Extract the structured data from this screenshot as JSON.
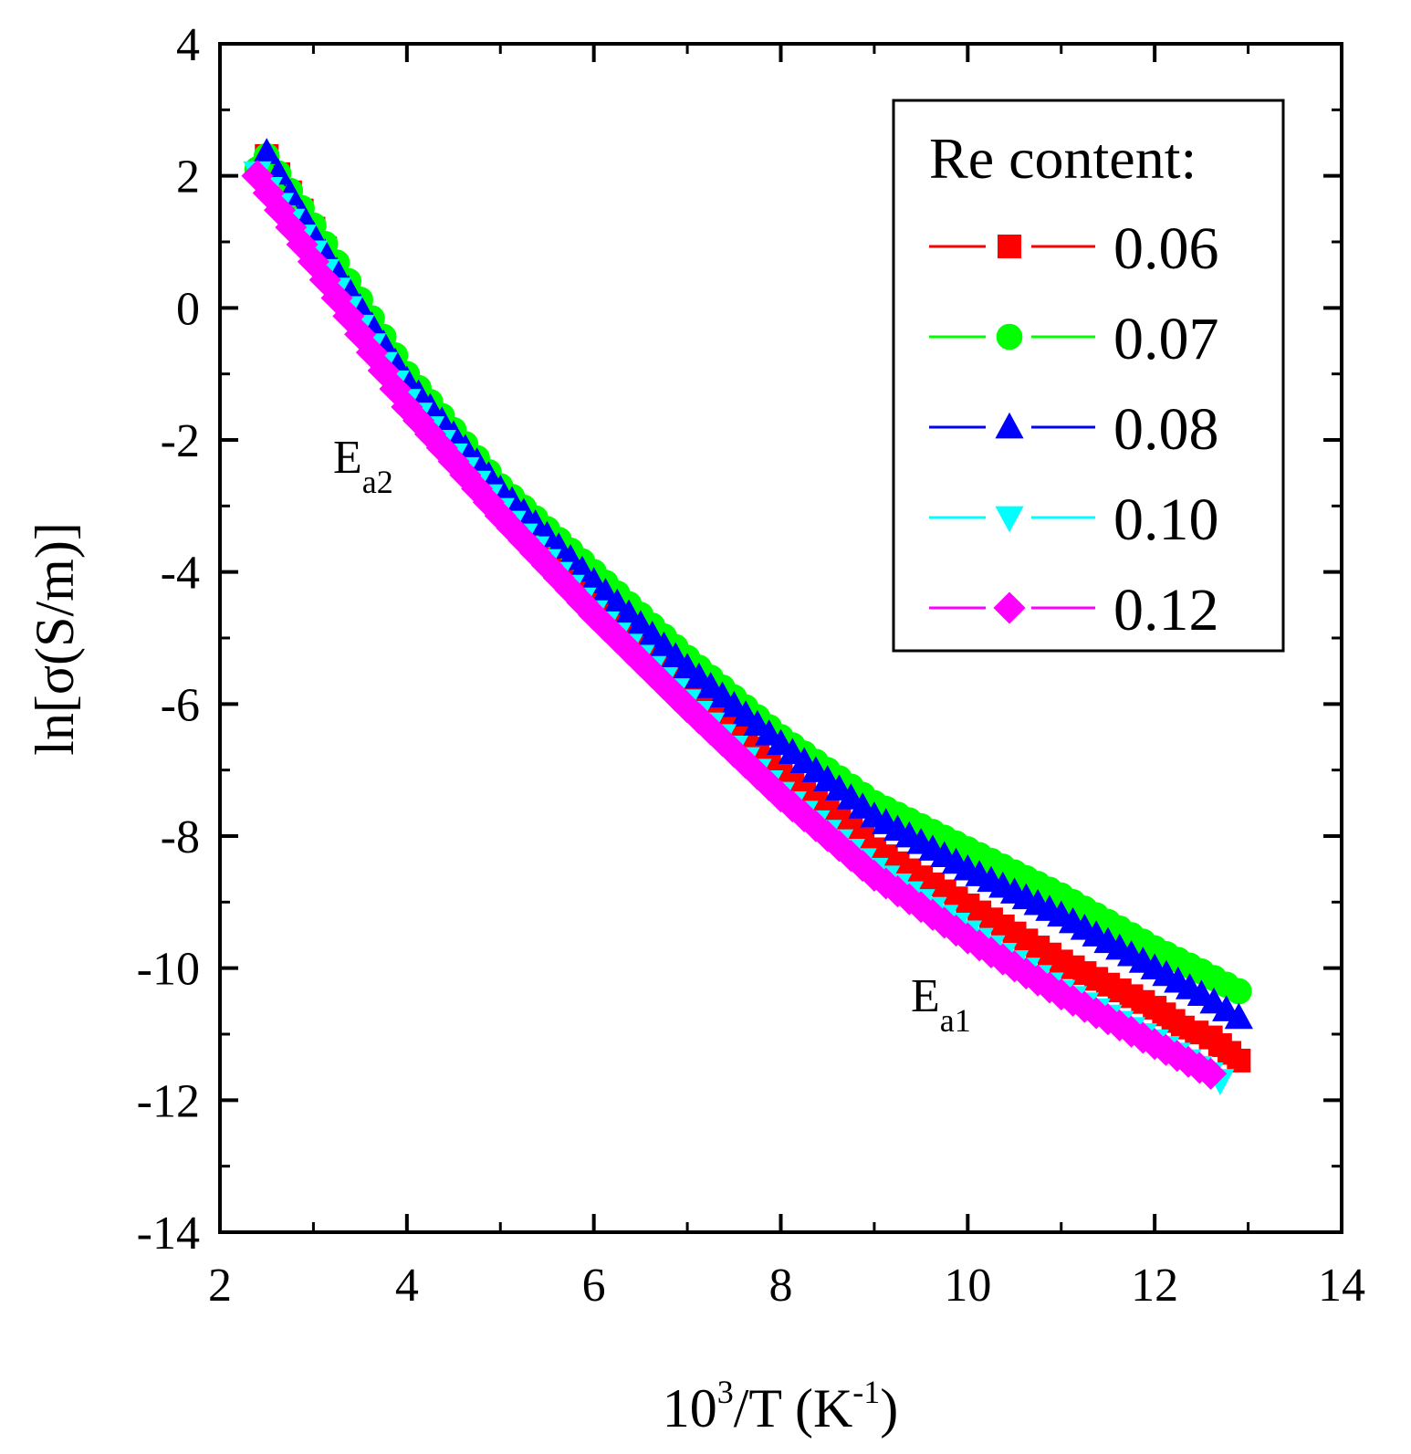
{
  "chart_data": {
    "type": "scatter",
    "xlabel_base": "10",
    "xlabel_sup": "3",
    "xlabel_mid": "/T  (K",
    "xlabel_sup2": "-1",
    "xlabel_end": ")",
    "ylabel": "ln[σ(S/m)]",
    "xlim": [
      2,
      14
    ],
    "ylim": [
      -14,
      4
    ],
    "xticks": [
      2,
      4,
      6,
      8,
      10,
      12,
      14
    ],
    "yticks": [
      -14,
      -12,
      -10,
      -8,
      -6,
      -4,
      -2,
      0,
      2,
      4
    ],
    "legend_title": "Re content:",
    "series": [
      {
        "name": "0.06",
        "color": "#ff0000",
        "marker": "square",
        "points": [
          [
            2.5,
            2.3
          ],
          [
            3,
            1.2
          ],
          [
            4,
            -1.2
          ],
          [
            5,
            -2.9
          ],
          [
            6,
            -4.35
          ],
          [
            7,
            -5.7
          ],
          [
            8,
            -7.0
          ],
          [
            9,
            -8.2
          ],
          [
            10,
            -9.05
          ],
          [
            11,
            -9.9
          ],
          [
            12,
            -10.6
          ],
          [
            12.3,
            -10.9
          ],
          [
            12.6,
            -11.05
          ],
          [
            12.9,
            -11.4
          ]
        ]
      },
      {
        "name": "0.07",
        "color": "#00ff00",
        "marker": "circle",
        "points": [
          [
            2.4,
            2.1
          ],
          [
            2.5,
            2.3
          ],
          [
            3,
            1.25
          ],
          [
            4,
            -1.0
          ],
          [
            5,
            -2.7
          ],
          [
            6,
            -4.0
          ],
          [
            7,
            -5.3
          ],
          [
            8,
            -6.5
          ],
          [
            9,
            -7.5
          ],
          [
            10,
            -8.2
          ],
          [
            11,
            -8.9
          ],
          [
            12,
            -9.7
          ],
          [
            12.5,
            -10.05
          ],
          [
            12.9,
            -10.35
          ]
        ]
      },
      {
        "name": "0.08",
        "color": "#0000ff",
        "marker": "triangle-up",
        "points": [
          [
            2.5,
            2.35
          ],
          [
            3,
            1.1
          ],
          [
            4,
            -1.1
          ],
          [
            5,
            -2.75
          ],
          [
            6,
            -4.15
          ],
          [
            7,
            -5.45
          ],
          [
            8,
            -6.6
          ],
          [
            9,
            -7.7
          ],
          [
            10,
            -8.5
          ],
          [
            11,
            -9.2
          ],
          [
            12,
            -10.0
          ],
          [
            12.5,
            -10.4
          ],
          [
            12.9,
            -10.75
          ]
        ]
      },
      {
        "name": "0.10",
        "color": "#00ffff",
        "marker": "triangle-down",
        "points": [
          [
            2.4,
            2.05
          ],
          [
            3,
            0.85
          ],
          [
            4,
            -1.4
          ],
          [
            5,
            -3.05
          ],
          [
            6,
            -4.6
          ],
          [
            7,
            -5.95
          ],
          [
            8,
            -7.35
          ],
          [
            9,
            -8.5
          ],
          [
            10,
            -9.45
          ],
          [
            11,
            -10.35
          ],
          [
            12,
            -11.1
          ],
          [
            12.7,
            -11.7
          ]
        ]
      },
      {
        "name": "0.12",
        "color": "#ff00ff",
        "marker": "diamond",
        "points": [
          [
            2.4,
            2.0
          ],
          [
            3,
            0.7
          ],
          [
            4,
            -1.5
          ],
          [
            5,
            -3.15
          ],
          [
            6,
            -4.65
          ],
          [
            7,
            -6.05
          ],
          [
            8,
            -7.4
          ],
          [
            9,
            -8.6
          ],
          [
            10,
            -9.55
          ],
          [
            11,
            -10.4
          ],
          [
            12,
            -11.15
          ],
          [
            12.6,
            -11.6
          ]
        ]
      }
    ],
    "annotations": [
      {
        "text": "E",
        "sub": "a2"
      },
      {
        "text": "E",
        "sub": "a1"
      }
    ]
  }
}
